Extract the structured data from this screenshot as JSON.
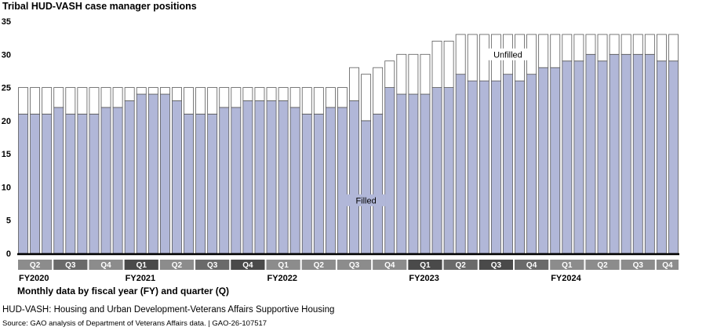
{
  "chart_data": {
    "type": "bar",
    "stacked": true,
    "title": "Tribal HUD-VASH case manager positions",
    "xlabel": "Monthly data by fiscal year (FY) and quarter (Q)",
    "ylabel": "",
    "ylim": [
      0,
      35
    ],
    "yticks": [
      0,
      5,
      10,
      15,
      20,
      25,
      30,
      35
    ],
    "grid": false,
    "legend": "inline",
    "series": [
      {
        "name": "Filled",
        "color": "#b1b7d8",
        "values": [
          21,
          21,
          21,
          22,
          21,
          21,
          21,
          22,
          22,
          23,
          24,
          24,
          24,
          23,
          21,
          21,
          21,
          22,
          22,
          23,
          23,
          23,
          23,
          22,
          21,
          21,
          22,
          22,
          23,
          20,
          21,
          25,
          24,
          24,
          24,
          25,
          25,
          27,
          26,
          26,
          26,
          27,
          26,
          27,
          28,
          28,
          29,
          29,
          30,
          29,
          30,
          30,
          30,
          30,
          29,
          29
        ]
      },
      {
        "name": "Unfilled",
        "color": "#ffffff",
        "values": [
          4,
          4,
          4,
          3,
          4,
          4,
          4,
          3,
          3,
          2,
          1,
          1,
          1,
          2,
          4,
          4,
          4,
          3,
          3,
          2,
          2,
          2,
          2,
          3,
          4,
          4,
          3,
          3,
          5,
          7,
          7,
          4,
          6,
          6,
          6,
          7,
          7,
          6,
          7,
          7,
          7,
          6,
          7,
          6,
          5,
          5,
          4,
          4,
          3,
          4,
          3,
          3,
          3,
          3,
          4,
          4
        ]
      }
    ],
    "totals": [
      25,
      25,
      25,
      25,
      25,
      25,
      25,
      25,
      25,
      25,
      25,
      25,
      25,
      25,
      25,
      25,
      25,
      25,
      25,
      25,
      25,
      25,
      25,
      25,
      25,
      25,
      25,
      25,
      28,
      27,
      28,
      29,
      30,
      30,
      30,
      32,
      32,
      33,
      33,
      33,
      33,
      33,
      33,
      33,
      33,
      33,
      33,
      33,
      33,
      33,
      33,
      33,
      33,
      33,
      33,
      33
    ],
    "quarters": [
      {
        "label": "Q2",
        "months": 3,
        "shade": "light"
      },
      {
        "label": "Q3",
        "months": 3,
        "shade": "mid"
      },
      {
        "label": "Q4",
        "months": 3,
        "shade": "light"
      },
      {
        "label": "Q1",
        "months": 3,
        "shade": "dark"
      },
      {
        "label": "Q2",
        "months": 3,
        "shade": "light"
      },
      {
        "label": "Q3",
        "months": 3,
        "shade": "mid"
      },
      {
        "label": "Q4",
        "months": 3,
        "shade": "dark"
      },
      {
        "label": "Q1",
        "months": 3,
        "shade": "light"
      },
      {
        "label": "Q2",
        "months": 3,
        "shade": "light"
      },
      {
        "label": "Q3",
        "months": 3,
        "shade": "light"
      },
      {
        "label": "Q4",
        "months": 3,
        "shade": "light"
      },
      {
        "label": "Q1",
        "months": 3,
        "shade": "dark"
      },
      {
        "label": "Q2",
        "months": 3,
        "shade": "mid"
      },
      {
        "label": "Q3",
        "months": 3,
        "shade": "dark"
      },
      {
        "label": "Q4",
        "months": 3,
        "shade": "mid"
      },
      {
        "label": "Q1",
        "months": 3,
        "shade": "light"
      },
      {
        "label": "Q2",
        "months": 3,
        "shade": "light"
      },
      {
        "label": "Q3",
        "months": 3,
        "shade": "light"
      },
      {
        "label": "Q4",
        "months": 2,
        "shade": "light"
      }
    ],
    "fiscal_years": [
      {
        "label": "FY2020",
        "start_quarter": 0
      },
      {
        "label": "FY2021",
        "start_quarter": 3
      },
      {
        "label": "FY2022",
        "start_quarter": 7
      },
      {
        "label": "FY2023",
        "start_quarter": 11
      },
      {
        "label": "FY2024",
        "start_quarter": 15
      }
    ],
    "annotations": [
      {
        "text": "Filled",
        "bar": 29,
        "y": 8
      },
      {
        "text": "Unfilled",
        "bar": 41,
        "y": 30
      }
    ],
    "quarter_shades": {
      "light": "#8c8c8c",
      "mid": "#6a6a6a",
      "dark": "#4a4a4a"
    },
    "outline_color": "#595959"
  },
  "footnote": "HUD-VASH: Housing and Urban Development-Veterans Affairs Supportive Housing",
  "source": "Source: GAO analysis of Department of Veterans Affairs data.  |  GAO-26-107517"
}
